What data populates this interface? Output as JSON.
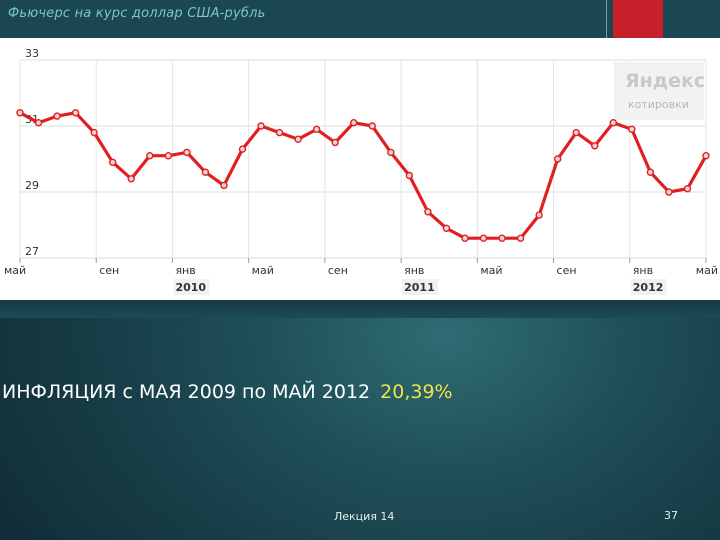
{
  "slide": {
    "title": "Фьючерс на курс доллар США-рубль",
    "statement": "ИНФЛЯЦИЯ с МАЯ 2009 по МАЙ 2012",
    "statement_value": "20,39%",
    "footer": "Лекция 14",
    "page_number": "37"
  },
  "colors": {
    "line": "#e02020",
    "marker_fill": "#f4d6d6",
    "accent_red": "#c8202a",
    "highlight_yellow": "#f2e24a",
    "title_teal": "#7dc4cc"
  },
  "watermark": {
    "logo_text": "Яндекс",
    "sub_text": "котировки"
  },
  "chart_data": {
    "type": "line",
    "ylim": [
      27,
      33
    ],
    "yticks": [
      "33",
      "31",
      "29",
      "27"
    ],
    "grid": true,
    "month_labels": [
      "май",
      "сен",
      "янв",
      "май",
      "сен",
      "янв",
      "май",
      "сен",
      "янв",
      "май"
    ],
    "year_labels": [
      "2010",
      "2011",
      "2012"
    ],
    "series": [
      {
        "values": [
          31.4,
          31.1,
          31.3,
          31.4,
          30.8,
          29.9,
          29.4,
          30.1,
          30.1,
          30.2,
          29.6,
          29.2,
          30.3,
          31.0,
          30.8,
          30.6,
          30.9,
          30.5,
          31.1,
          31.0,
          30.2,
          29.5,
          28.4,
          27.9,
          27.6,
          27.6,
          27.6,
          27.6,
          28.3,
          30.0,
          30.8,
          30.4,
          31.1,
          30.9,
          29.6,
          29.0,
          29.1,
          30.1
        ]
      }
    ]
  }
}
